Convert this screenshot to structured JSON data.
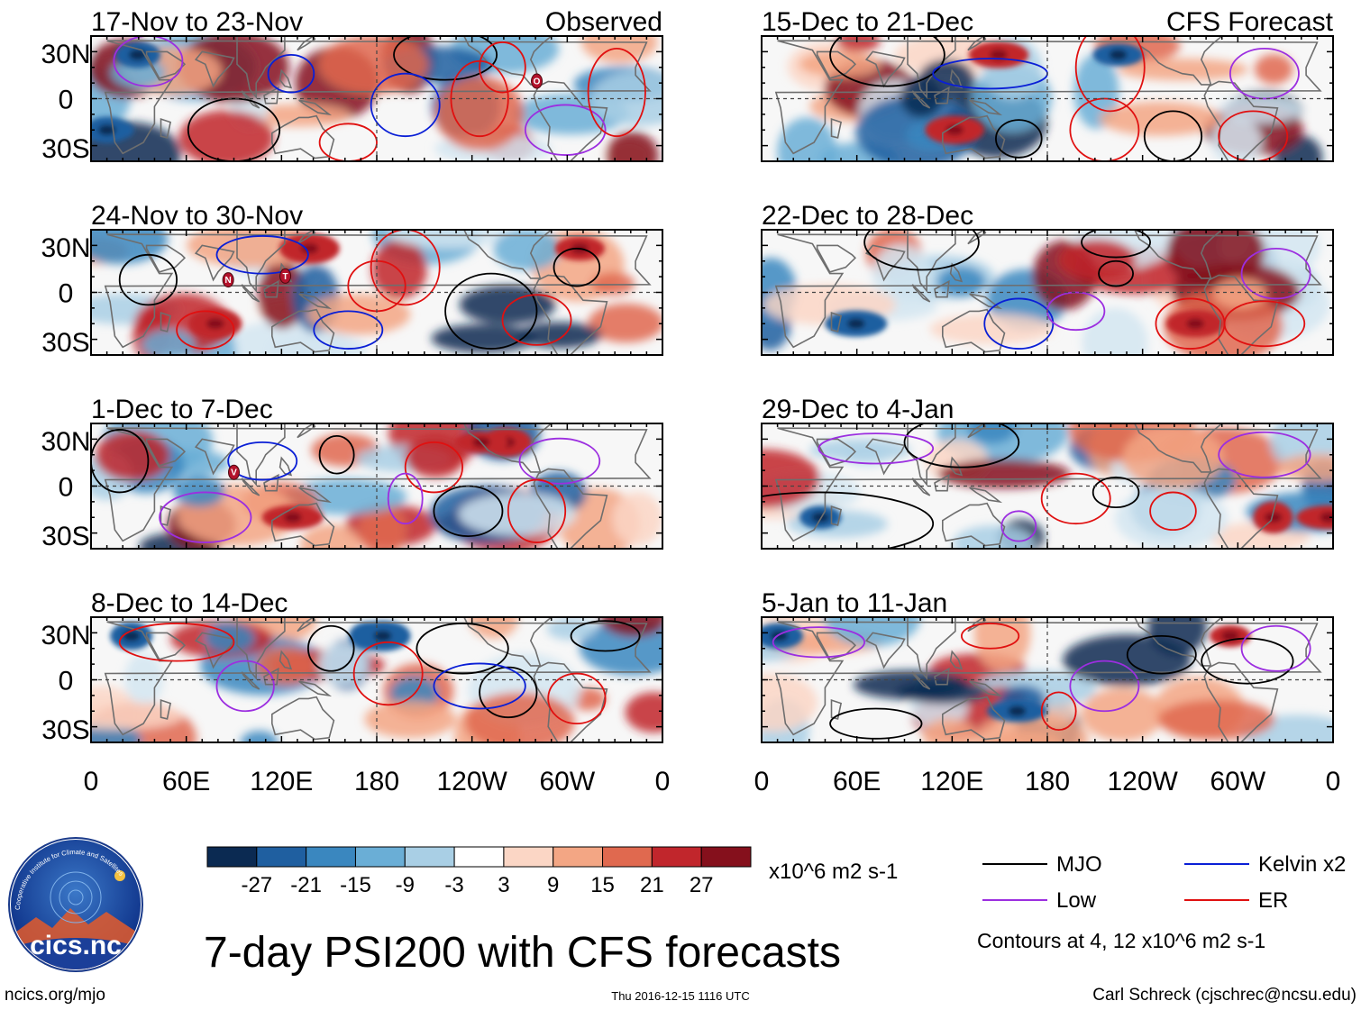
{
  "colors": {
    "scale": [
      "#0b2a52",
      "#1f5fa0",
      "#3a87bf",
      "#6aaed6",
      "#a9cfe5",
      "#d4e6f1",
      "#ffffff",
      "#fbd6c5",
      "#f3a684",
      "#e0694f",
      "#c1262c",
      "#85101c",
      "#5c0015"
    ],
    "mjo": "#000000",
    "kelvin": "#0a1fd6",
    "low": "#9c2ee0",
    "er": "#e01010",
    "coast": "#6e6e6e",
    "box": "#000000"
  },
  "panels": [
    {
      "title": "17-Nov to 23-Nov",
      "tag": "Observed"
    },
    {
      "title": "24-Nov to 30-Nov",
      "tag": ""
    },
    {
      "title": "1-Dec to 7-Dec",
      "tag": ""
    },
    {
      "title": "8-Dec to 14-Dec",
      "tag": ""
    },
    {
      "title": "15-Dec to 21-Dec",
      "tag": "CFS Forecast"
    },
    {
      "title": "22-Dec to 28-Dec",
      "tag": ""
    },
    {
      "title": "29-Dec to 4-Jan",
      "tag": ""
    },
    {
      "title": "5-Jan to 11-Jan",
      "tag": ""
    }
  ],
  "lat_labels": [
    "30N",
    "0",
    "30S"
  ],
  "lon_labels": [
    "0",
    "60E",
    "120E",
    "180",
    "120W",
    "60W",
    "0"
  ],
  "storm_markers": [
    {
      "panel": 0,
      "letter": "O"
    },
    {
      "panel": 1,
      "letter": "N"
    },
    {
      "panel": 1,
      "letter": "T"
    },
    {
      "panel": 2,
      "letter": "V"
    }
  ],
  "colorbar": {
    "ticks": [
      "-27",
      "-21",
      "-15",
      "-9",
      "-3",
      "3",
      "9",
      "15",
      "21",
      "27"
    ],
    "units": "x10^6 m2 s-1"
  },
  "legend": {
    "items": [
      {
        "name": "MJO",
        "color": "#000000"
      },
      {
        "name": "Kelvin x2",
        "color": "#0a1fd6"
      },
      {
        "name": "Low",
        "color": "#9c2ee0"
      },
      {
        "name": "ER",
        "color": "#e01010"
      }
    ],
    "note": "Contours at 4, 12 x10^6 m2 s-1"
  },
  "logo": {
    "text": "cics.nc",
    "arc_text": "Cooperative Institute for Climate and Satellites"
  },
  "title": "7-day PSI200 with CFS forecasts",
  "footer": {
    "left": "ncics.org/mjo",
    "center": "Thu 2016-12-15 1116 UTC",
    "right": "Carl Schreck (cjschrec@ncsu.edu)"
  }
}
